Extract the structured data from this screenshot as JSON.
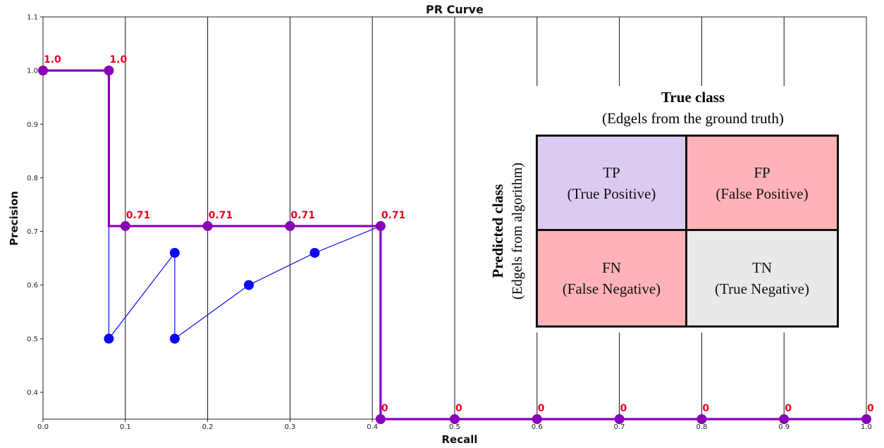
{
  "chart_data": {
    "type": "line",
    "title": "PR Curve",
    "xlabel": "Recall",
    "ylabel": "Precision",
    "xlim": [
      0.0,
      1.0
    ],
    "ylim": [
      0.35,
      1.1
    ],
    "x_ticks": [
      "0.0",
      "0.1",
      "0.2",
      "0.3",
      "0.4",
      "0.5",
      "0.6",
      "0.7",
      "0.8",
      "0.9",
      "1.0"
    ],
    "y_ticks": [
      "0.4",
      "0.5",
      "0.6",
      "0.7",
      "0.8",
      "0.9",
      "1.0",
      "1.1"
    ],
    "grid": "vertical",
    "series": [
      {
        "color": "#8a00b8",
        "style": "step",
        "points": [
          {
            "x": 0.0,
            "y": 1.0,
            "label": "1.0"
          },
          {
            "x": 0.08,
            "y": 1.0,
            "label": "1.0"
          },
          {
            "x": 0.1,
            "y": 0.71,
            "label": "0.71"
          },
          {
            "x": 0.2,
            "y": 0.71,
            "label": "0.71"
          },
          {
            "x": 0.3,
            "y": 0.71,
            "label": "0.71"
          },
          {
            "x": 0.41,
            "y": 0.71,
            "label": "0.71"
          },
          {
            "x": 0.41,
            "y": 0.35,
            "label": "0"
          },
          {
            "x": 0.5,
            "y": 0.35,
            "label": "0"
          },
          {
            "x": 0.6,
            "y": 0.35,
            "label": "0"
          },
          {
            "x": 0.7,
            "y": 0.35,
            "label": "0"
          },
          {
            "x": 0.8,
            "y": 0.35,
            "label": "0"
          },
          {
            "x": 0.9,
            "y": 0.35,
            "label": "0"
          },
          {
            "x": 1.0,
            "y": 0.35,
            "label": "0"
          }
        ],
        "path": [
          [
            0.0,
            1.0
          ],
          [
            0.08,
            1.0
          ],
          [
            0.08,
            0.71
          ],
          [
            0.41,
            0.71
          ],
          [
            0.41,
            0.35
          ],
          [
            1.0,
            0.35
          ]
        ]
      },
      {
        "color": "#0a0af0",
        "style": "line",
        "points": [
          {
            "x": 0.08,
            "y": 1.0
          },
          {
            "x": 0.08,
            "y": 0.5
          },
          {
            "x": 0.16,
            "y": 0.66
          },
          {
            "x": 0.16,
            "y": 0.5
          },
          {
            "x": 0.25,
            "y": 0.6
          },
          {
            "x": 0.33,
            "y": 0.66
          },
          {
            "x": 0.41,
            "y": 0.71
          }
        ],
        "visible_points": [
          1,
          2,
          3,
          4,
          5
        ]
      }
    ]
  },
  "confusion_matrix": {
    "title": "True class",
    "subtitle": "(Edgels from the ground truth)",
    "side_title": "Predicted class",
    "side_subtitle": "(Edgels from algorithm)",
    "cells": {
      "tp": {
        "abbr": "TP",
        "full": "(True Positive)",
        "color": "#dccbf1"
      },
      "fp": {
        "abbr": "FP",
        "full": "(False Positive)",
        "color": "#ffb3b8"
      },
      "fn": {
        "abbr": "FN",
        "full": "(False Negative)",
        "color": "#ffb3b8"
      },
      "tn": {
        "abbr": "TN",
        "full": "(True Negative)",
        "color": "#eae8ea"
      }
    }
  }
}
